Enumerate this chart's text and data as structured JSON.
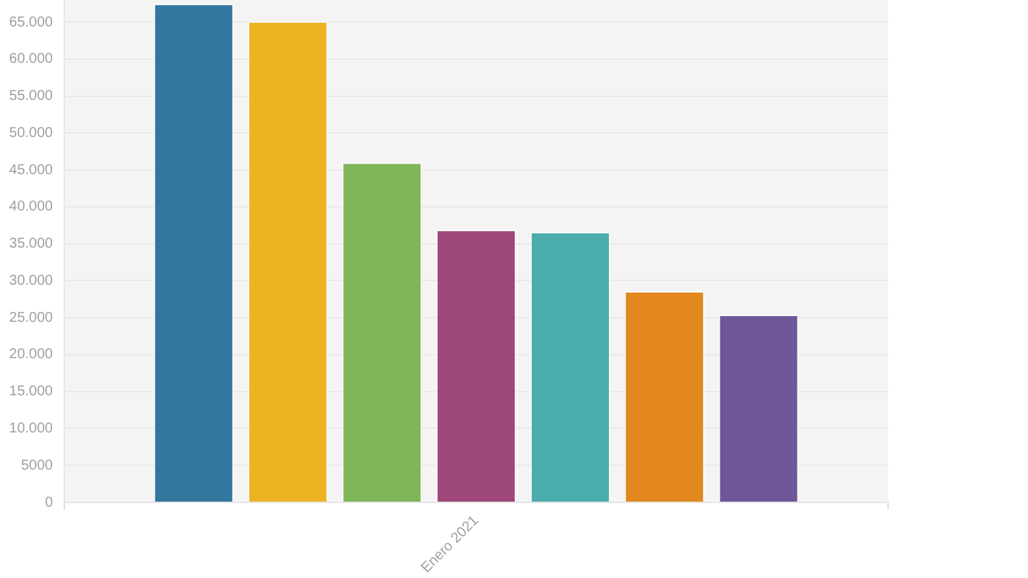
{
  "chart_data": {
    "type": "bar",
    "categories": [
      "Enero 2021"
    ],
    "series": [
      {
        "color": "#33779f",
        "values": [
          67500
        ]
      },
      {
        "color": "#ecb221",
        "values": [
          65100
        ]
      },
      {
        "color": "#80b65a",
        "values": [
          46000
        ]
      },
      {
        "color": "#9d4878",
        "values": [
          36900
        ]
      },
      {
        "color": "#4aadac",
        "values": [
          36600
        ]
      },
      {
        "color": "#e2881e",
        "values": [
          28600
        ]
      },
      {
        "color": "#6f5799",
        "values": [
          25400
        ]
      }
    ],
    "ylim": [
      0,
      68000
    ],
    "yticks": [
      0,
      5000,
      {
        "value": 10000,
        "label": "10.000"
      },
      {
        "value": 15000,
        "label": "15.000"
      },
      {
        "value": 20000,
        "label": "20.000"
      },
      {
        "value": 25000,
        "label": "25.000"
      },
      {
        "value": 30000,
        "label": "30.000"
      },
      {
        "value": 35000,
        "label": "35.000"
      },
      {
        "value": 40000,
        "label": "40.000"
      },
      {
        "value": 45000,
        "label": "45.000"
      },
      {
        "value": 50000,
        "label": "50.000"
      },
      {
        "value": 55000,
        "label": "55.000"
      },
      {
        "value": 60000,
        "label": "60.000"
      },
      {
        "value": 65000,
        "label": "65.000"
      }
    ],
    "grid": "y",
    "legend": false
  }
}
